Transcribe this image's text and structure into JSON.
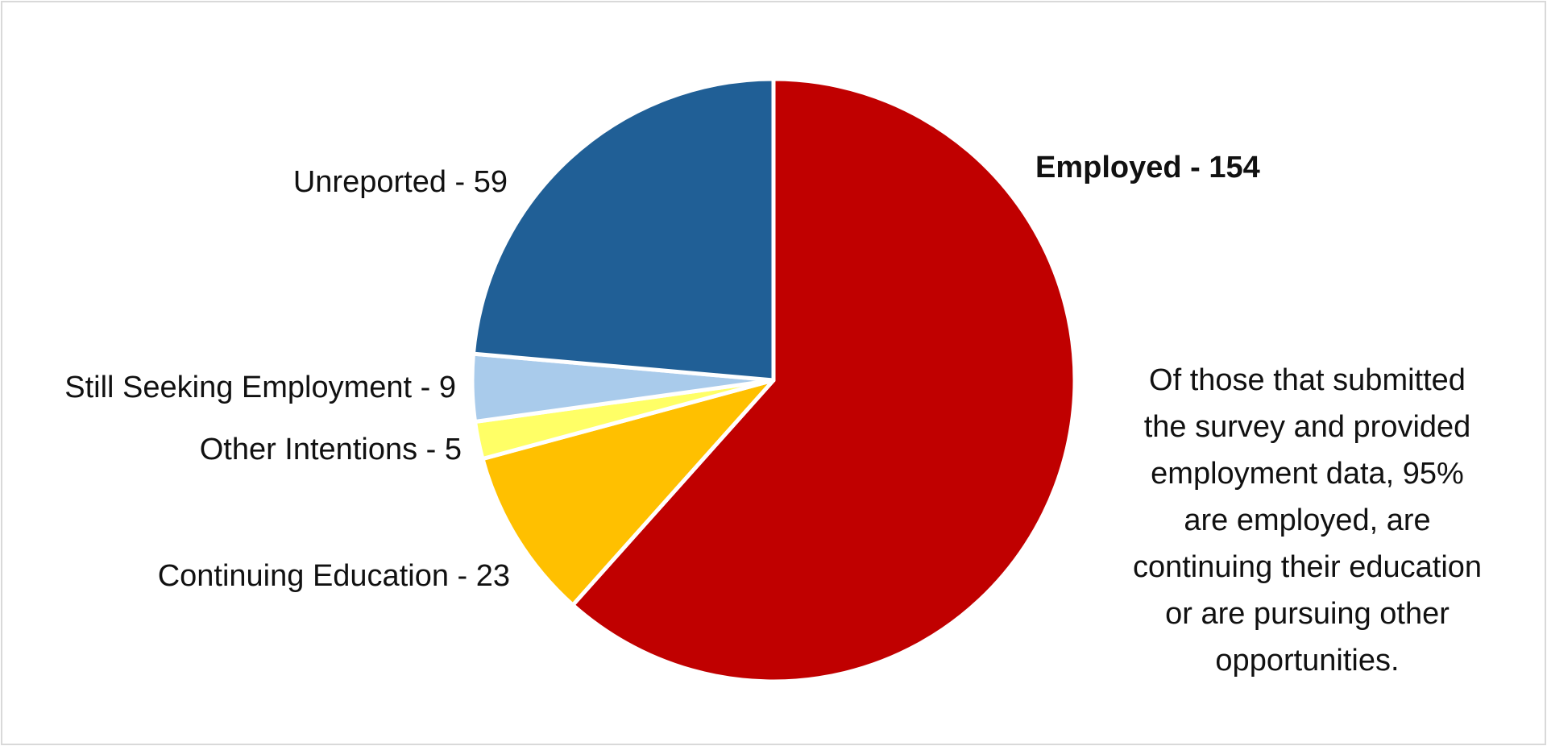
{
  "chart_data": {
    "type": "pie",
    "start_angle_deg": 0,
    "direction": "clockwise",
    "slices": [
      {
        "label": "Employed - 154",
        "value": 154,
        "color": "#c00000",
        "emphasis": true
      },
      {
        "label": "Continuing Education - 23",
        "value": 23,
        "color": "#ffc000",
        "emphasis": false
      },
      {
        "label": "Other Intentions - 5",
        "value": 5,
        "color": "#ffff66",
        "emphasis": false
      },
      {
        "label": "Still Seeking Employment - 9",
        "value": 9,
        "color": "#a9cbeb",
        "emphasis": false
      },
      {
        "label": "Unreported - 59",
        "value": 59,
        "color": "#205f96",
        "emphasis": false
      }
    ]
  },
  "annotation": {
    "lines": [
      "Of those that submitted",
      "the survey and provided",
      "employment data, 95%",
      "are employed, are",
      "continuing their education",
      "or are pursuing other",
      "opportunities."
    ]
  }
}
